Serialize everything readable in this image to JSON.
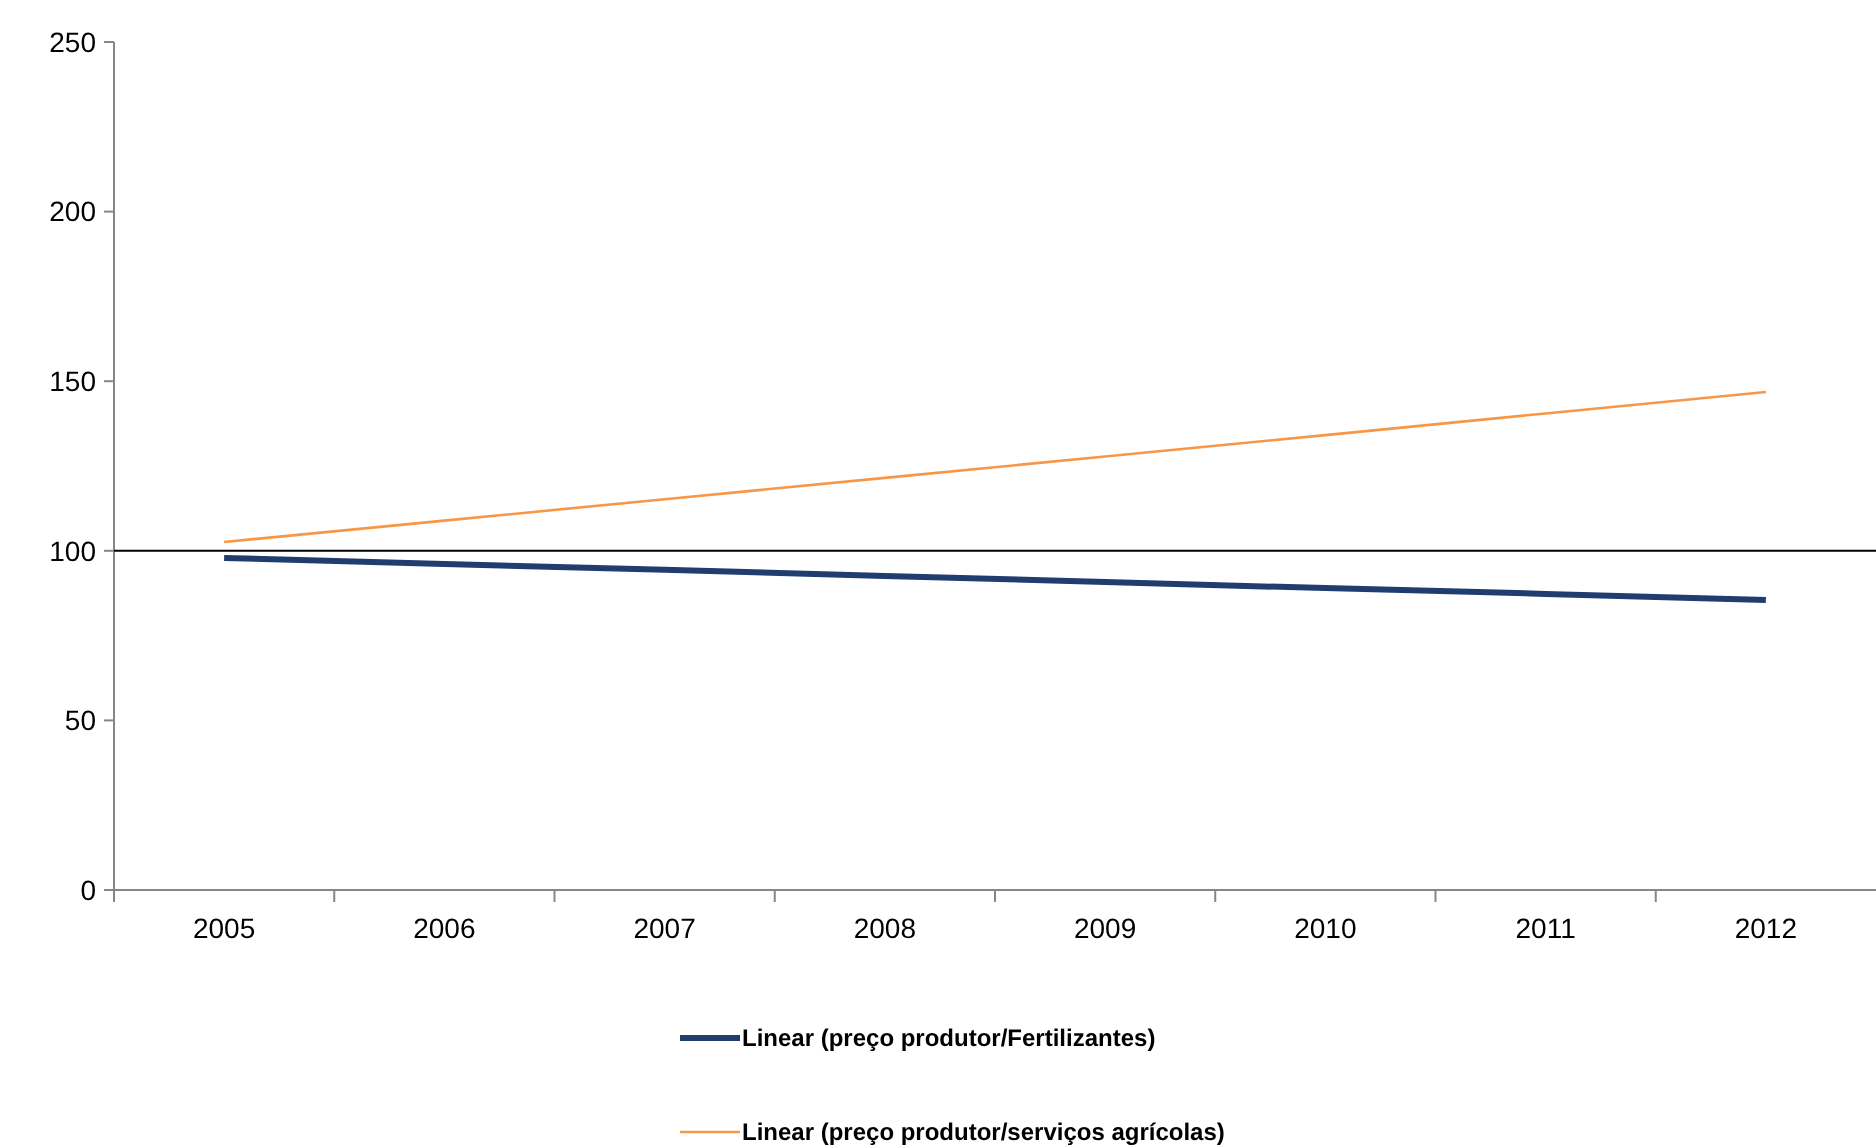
{
  "chart_data": {
    "type": "line",
    "categories": [
      "2005",
      "2006",
      "2007",
      "2008",
      "2009",
      "2010",
      "2011",
      "2012"
    ],
    "series": [
      {
        "name": "Linear (preço produtor/Fertilizantes)",
        "color": "#1f3d6e",
        "values": [
          97.9,
          96.1,
          94.4,
          92.6,
          90.8,
          89.0,
          87.3,
          85.5
        ]
      },
      {
        "name": "Linear (preço produtor/serviços agrícolas)",
        "color": "#f79646",
        "values": [
          102.6,
          108.9,
          115.2,
          121.5,
          127.8,
          134.1,
          140.5,
          146.8
        ]
      }
    ],
    "ylim": [
      0,
      250
    ],
    "yticks": [
      0,
      50,
      100,
      150,
      200,
      250
    ],
    "ref_lines": [
      {
        "axis": "y",
        "value": 100,
        "color": "#000000"
      }
    ],
    "grid": false,
    "legend": "bottom",
    "marker": "none",
    "line_style": "solid"
  }
}
